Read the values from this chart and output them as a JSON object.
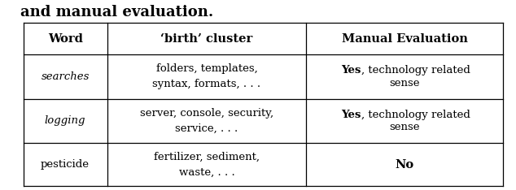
{
  "title_text": "and manual evaluation.",
  "headers": [
    "Word",
    "‘birth’ cluster",
    "Manual Evaluation"
  ],
  "rows": [
    {
      "word": "searches",
      "word_italic": true,
      "cluster": "folders, templates,\nsyntax, formats, . . .",
      "eval_line1_bold": "Yes",
      "eval_line1_normal": ", technology related",
      "eval_line2": "sense"
    },
    {
      "word": "logging",
      "word_italic": true,
      "cluster": "server, console, security,\nservice, . . .",
      "eval_line1_bold": "Yes",
      "eval_line1_normal": ", technology related",
      "eval_line2": "sense"
    },
    {
      "word": "pesticide",
      "word_italic": false,
      "cluster": "fertilizer, sediment,\nwaste, . . .",
      "eval_line1_bold": "No",
      "eval_line1_normal": "",
      "eval_line2": ""
    }
  ],
  "background_color": "#ffffff",
  "border_color": "#000000",
  "header_fontsize": 10.5,
  "body_fontsize": 9.5,
  "title_fontsize": 13,
  "fig_width": 6.34,
  "fig_height": 2.34,
  "dpi": 100
}
